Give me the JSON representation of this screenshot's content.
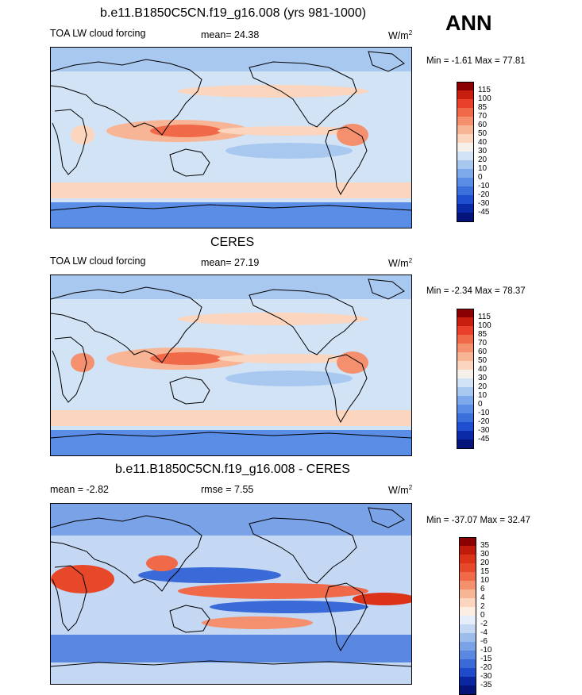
{
  "season": "ANN",
  "panels": [
    {
      "title": "b.e11.B1850C5CN.f19_g16.008 (yrs 981-1000)",
      "left_label": "TOA LW cloud forcing",
      "mid_label": "mean=  24.38",
      "units": "W/m",
      "units_sup": "2",
      "minmax": "Min =  -1.61 Max =  77.81",
      "levels": [
        "115",
        "100",
        "85",
        "70",
        "60",
        "50",
        "40",
        "30",
        "20",
        "10",
        "0",
        "-10",
        "-20",
        "-30",
        "-45"
      ],
      "colors": [
        "#8b0000",
        "#c81e10",
        "#e8402a",
        "#f06a4a",
        "#f5906e",
        "#f8b596",
        "#fbd5bd",
        "#f5f0ea",
        "#d2e3f6",
        "#a8c8f0",
        "#7ea9ea",
        "#5a8de5",
        "#3a6fdc",
        "#1f4fd0",
        "#0a2aa8",
        "#05147a"
      ]
    },
    {
      "title": "CERES",
      "left_label": "TOA LW cloud forcing",
      "mid_label": "mean=  27.19",
      "units": "W/m",
      "units_sup": "2",
      "minmax": "Min =  -2.34 Max =  78.37",
      "levels": [
        "115",
        "100",
        "85",
        "70",
        "60",
        "50",
        "40",
        "30",
        "20",
        "10",
        "0",
        "-10",
        "-20",
        "-30",
        "-45"
      ],
      "colors": [
        "#8b0000",
        "#c81e10",
        "#e8402a",
        "#f06a4a",
        "#f5906e",
        "#f8b596",
        "#fbd5bd",
        "#f5f0ea",
        "#d2e3f6",
        "#a8c8f0",
        "#7ea9ea",
        "#5a8de5",
        "#3a6fdc",
        "#1f4fd0",
        "#0a2aa8",
        "#05147a"
      ]
    },
    {
      "title": "b.e11.B1850C5CN.f19_g16.008 - CERES",
      "left_label": "mean =  -2.82",
      "mid_label": "rmse =   7.55",
      "units": "W/m",
      "units_sup": "2",
      "minmax": "Min = -37.07 Max =  32.47",
      "levels": [
        "35",
        "30",
        "20",
        "15",
        "10",
        "6",
        "4",
        "2",
        "0",
        "-2",
        "-4",
        "-6",
        "-10",
        "-15",
        "-20",
        "-30",
        "-35"
      ],
      "colors": [
        "#8b0000",
        "#c01a0a",
        "#dc3218",
        "#e8482a",
        "#f06a4a",
        "#f5906e",
        "#f8b596",
        "#fbd5bd",
        "#fdeee4",
        "#e6eefb",
        "#c4d8f4",
        "#9cbcec",
        "#7aa2e6",
        "#5a88e0",
        "#3a6ad8",
        "#1f4acb",
        "#0a26a0",
        "#05147a"
      ]
    }
  ]
}
